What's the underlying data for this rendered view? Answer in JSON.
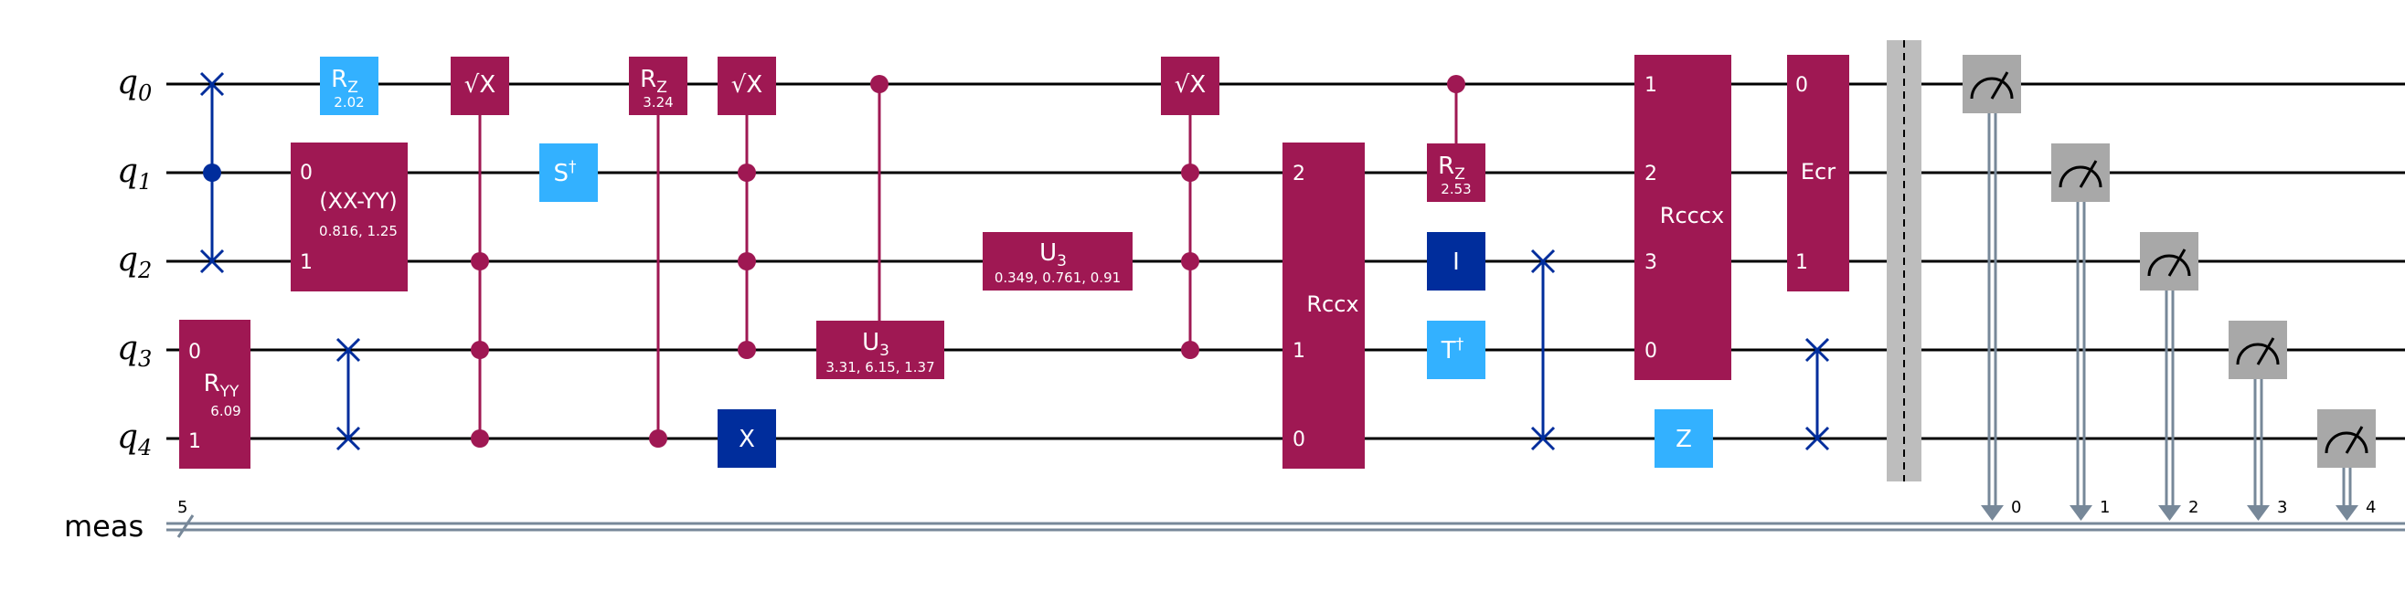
{
  "colors": {
    "magenta": "#9F1853",
    "lightblue": "#33B1FF",
    "darkblue": "#002D9C",
    "measure": "#A8A8A8",
    "barrier": "#BDBDBD",
    "classical": "#778899"
  },
  "labels": {
    "qubits": [
      {
        "base": "q",
        "sub": "0"
      },
      {
        "base": "q",
        "sub": "1"
      },
      {
        "base": "q",
        "sub": "2"
      },
      {
        "base": "q",
        "sub": "3"
      },
      {
        "base": "q",
        "sub": "4"
      }
    ],
    "classical": "meas",
    "classical_width": "5"
  },
  "gates": {
    "rz0": {
      "name": "R",
      "sub": "Z",
      "param": "2.02"
    },
    "xxyy": {
      "name": "(XX-YY)",
      "param": "0.816, 1.25",
      "pin_top": "0",
      "pin_bot": "1"
    },
    "ryy": {
      "name": "R",
      "sub": "YY",
      "param": "6.09",
      "pin_top": "0",
      "pin_bot": "1"
    },
    "sqrtx1": {
      "name": "√X"
    },
    "sdg": {
      "name": "S",
      "sup": "†"
    },
    "rz1": {
      "name": "R",
      "sub": "Z",
      "param": "3.24"
    },
    "sqrtx2": {
      "name": "√X"
    },
    "x": {
      "name": "X"
    },
    "u3a": {
      "name": "U",
      "sub": "3",
      "param": "3.31, 6.15, 1.37"
    },
    "u3b": {
      "name": "U",
      "sub": "3",
      "param": "0.349, 0.761, 0.91"
    },
    "sqrtx3": {
      "name": "√X"
    },
    "rccx": {
      "name": "Rccx",
      "pins": [
        "2",
        "1",
        "0"
      ]
    },
    "crz": {
      "name": "R",
      "sub": "Z",
      "param": "2.53"
    },
    "id": {
      "name": "I"
    },
    "tdg": {
      "name": "T",
      "sup": "†"
    },
    "rcccx": {
      "name": "Rcccx",
      "pins": [
        "1",
        "2",
        "3",
        "0"
      ]
    },
    "z": {
      "name": "Z"
    },
    "ecr": {
      "name": "Ecr",
      "pins": [
        "0",
        "1"
      ]
    }
  },
  "measure_bits": [
    "0",
    "1",
    "2",
    "3",
    "4"
  ]
}
